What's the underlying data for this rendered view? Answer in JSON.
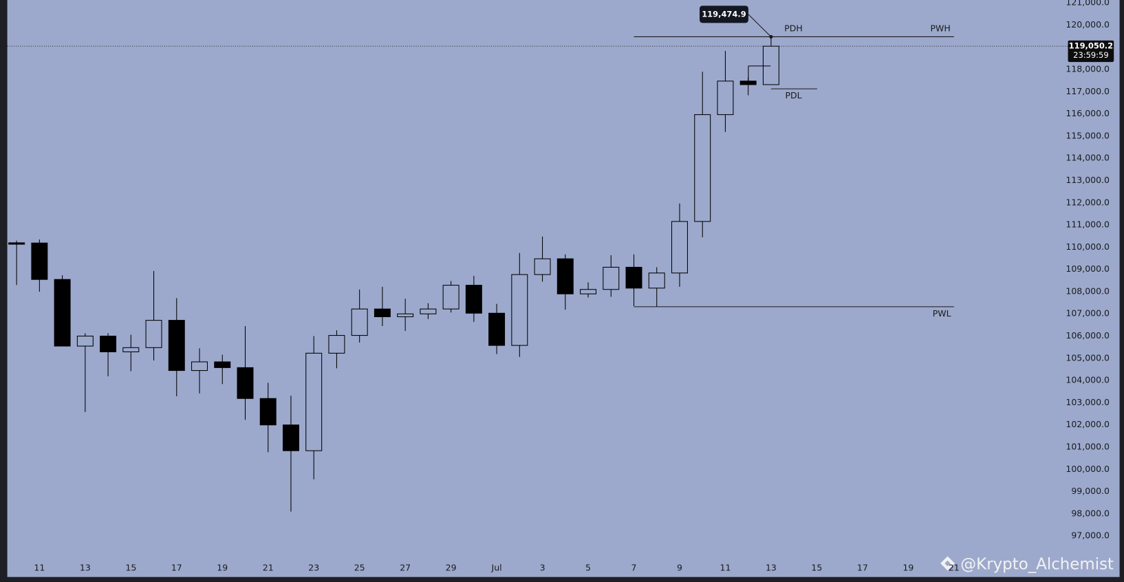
{
  "chart_data": {
    "type": "candlestick",
    "categories": [
      null,
      "11",
      null,
      "13",
      null,
      "15",
      null,
      "17",
      null,
      "19",
      null,
      "21",
      null,
      "23",
      null,
      "25",
      null,
      "27",
      null,
      "29",
      null,
      "Jul",
      null,
      "3",
      null,
      "5",
      null,
      "7",
      null,
      "9",
      null,
      "11",
      null,
      "13",
      null,
      "15",
      null,
      "17",
      null,
      "19",
      null,
      "21"
    ],
    "open": [
      110200,
      110190,
      108550,
      105550,
      106000,
      105290,
      105480,
      106710,
      104450,
      104840,
      104580,
      103190,
      102000,
      100840,
      105230,
      106030,
      107220,
      106870,
      107000,
      107220,
      108290,
      107030,
      105580,
      108770,
      109480,
      107900,
      108100,
      109100,
      108160,
      108840,
      111160,
      115970,
      117480,
      117320,
      null,
      null,
      null,
      null,
      null,
      null,
      null,
      null
    ],
    "high": [
      110300,
      110350,
      108740,
      106130,
      106130,
      106060,
      108930,
      107710,
      105450,
      105160,
      106450,
      103900,
      103320,
      106000,
      106260,
      108100,
      108220,
      107680,
      107480,
      108480,
      108710,
      107450,
      109740,
      110480,
      109680,
      108420,
      109640,
      109680,
      109100,
      111970,
      117900,
      118840,
      117640,
      119474.9,
      null,
      null,
      null,
      null,
      null,
      null,
      null,
      null
    ],
    "low": [
      108300,
      108000,
      105550,
      102580,
      104190,
      104420,
      104900,
      103290,
      103420,
      103840,
      102230,
      100770,
      98100,
      99550,
      104550,
      105710,
      106450,
      106230,
      106770,
      107060,
      106640,
      105190,
      105060,
      108450,
      107190,
      107740,
      107770,
      107350,
      107320,
      108220,
      110450,
      115190,
      116840,
      117320,
      null,
      null,
      null,
      null,
      null,
      null,
      null,
      null
    ],
    "close": [
      110190,
      108550,
      105550,
      106000,
      105290,
      105480,
      106710,
      104450,
      104840,
      104580,
      103190,
      102000,
      100840,
      105230,
      106030,
      107220,
      106870,
      107000,
      107220,
      108290,
      107030,
      105580,
      108770,
      109480,
      107900,
      108100,
      109100,
      108160,
      108840,
      111160,
      115970,
      117480,
      117320,
      119050.2,
      null,
      null,
      null,
      null,
      null,
      null,
      null,
      null
    ],
    "up_color": "#9ca9cc",
    "down_color": "#000000",
    "ylim": [
      96220,
      121130
    ],
    "yticks": [
      {
        "value": 97000,
        "label": "97,000.0"
      },
      {
        "value": 98000,
        "label": "98,000.0"
      },
      {
        "value": 99000,
        "label": "99,000.0"
      },
      {
        "value": 100000,
        "label": "100,000.0"
      },
      {
        "value": 101000,
        "label": "101,000.0"
      },
      {
        "value": 102000,
        "label": "102,000.0"
      },
      {
        "value": 103000,
        "label": "103,000.0"
      },
      {
        "value": 104000,
        "label": "104,000.0"
      },
      {
        "value": 105000,
        "label": "105,000.0"
      },
      {
        "value": 106000,
        "label": "106,000.0"
      },
      {
        "value": 107000,
        "label": "107,000.0"
      },
      {
        "value": 108000,
        "label": "108,000.0"
      },
      {
        "value": 109000,
        "label": "109,000.0"
      },
      {
        "value": 110000,
        "label": "110,000.0"
      },
      {
        "value": 111000,
        "label": "111,000.0"
      },
      {
        "value": 112000,
        "label": "112,000.0"
      },
      {
        "value": 113000,
        "label": "113,000.0"
      },
      {
        "value": 114000,
        "label": "114,000.0"
      },
      {
        "value": 115000,
        "label": "115,000.0"
      },
      {
        "value": 116000,
        "label": "116,000.0"
      },
      {
        "value": 117000,
        "label": "117,000.0"
      },
      {
        "value": 118000,
        "label": "118,000.0"
      },
      {
        "value": 120000,
        "label": "120,000.0"
      },
      {
        "value": 121000,
        "label": "121,000.0"
      }
    ],
    "levels": [
      {
        "value": 119474.9,
        "labels": [
          "PDH",
          "PWH"
        ]
      },
      {
        "value": 117130,
        "labels": [
          "PDL"
        ]
      },
      {
        "value": 107320,
        "labels": [
          "PWL"
        ]
      }
    ],
    "last_price": {
      "value": 119050.2,
      "label": "119,050.2"
    },
    "countdown": "23:59:59",
    "high_callout": {
      "value": 119474.9,
      "label": "119,474.9"
    },
    "watermark": "@Krypto_Alchemist"
  }
}
